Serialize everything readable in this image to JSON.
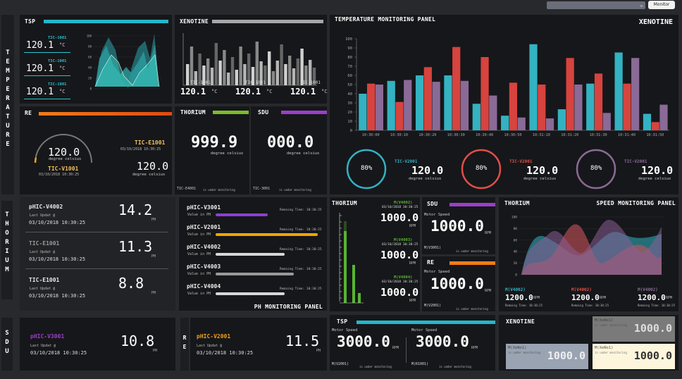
{
  "topbar": {
    "dropdown": "",
    "button": "Monitor"
  },
  "side": {
    "temperature": "T\nE\nM\nP\nE\nR\nA\nT\nU\nR\nE",
    "thorium": "T\nH\nO\nR\nI\nU\nM",
    "sdu": "S\nD\nU",
    "re": "R\nE"
  },
  "tsp": {
    "title": "TSP",
    "items": [
      {
        "name": "TIC-1001",
        "value": "120.1",
        "unit": "°C"
      },
      {
        "name": "TIC-1001",
        "value": "120.1",
        "unit": "°C"
      },
      {
        "name": "TIC-1001",
        "value": "120.1",
        "unit": "°C"
      }
    ],
    "axis": [
      "100",
      "80",
      "60",
      "40",
      "20",
      "0"
    ]
  },
  "xen": {
    "title": "XENOTINE",
    "items": [
      {
        "name": "TIC-1001",
        "value": "120.1",
        "unit": "°C"
      },
      {
        "name": "TIC-1001",
        "value": "120.1",
        "unit": "°C"
      },
      {
        "name": "TIC-1001",
        "value": "120.1",
        "unit": "°C"
      }
    ]
  },
  "re": {
    "title": "RE",
    "gauge_value": "120.0",
    "gauge_unit": "degree celsius",
    "gauge_name": "TIC-V1001",
    "gauge_time": "03/10/2018 10:30:25",
    "side_name": "TIC-E1001",
    "side_time": "03/10/2018 10:30:25",
    "side_value": "120.0",
    "side_unit": "degree celsius"
  },
  "thor1": {
    "title": "THORIUM",
    "value": "999.9",
    "unit": "degree celsius",
    "name": "TIC-E4001",
    "status": "is under monitoring"
  },
  "sdu1": {
    "title": "SDU",
    "value": "000.0",
    "unit": "degree celsius",
    "name": "TIC-3001",
    "status": "is under monitoring"
  },
  "temp": {
    "title": "TEMPERATURE MONITORING PANEL",
    "sub": "XENOTINE",
    "circles": [
      {
        "pct": "80%",
        "name": "TIC-V2001",
        "value": "120.0",
        "unit": "degree celsius",
        "color": "#33b2c2"
      },
      {
        "pct": "80%",
        "name": "TIC-V2001",
        "value": "120.0",
        "unit": "degree celsius",
        "color": "#e04f4a"
      },
      {
        "pct": "80%",
        "name": "TIC-V2001",
        "value": "120.0",
        "unit": "degree celsius",
        "color": "#8c6a96"
      }
    ]
  },
  "chart_data": {
    "type": "bar",
    "categories": [
      "10:30:00",
      "10:30:10",
      "10:30:20",
      "10:30:30",
      "10:30:40",
      "10:30:50",
      "10:31:10",
      "10:31:20",
      "10:31:30",
      "10:31:40",
      "10:31:50"
    ],
    "ylim": [
      0,
      100
    ],
    "yticks": [
      "0",
      "10",
      "20",
      "30",
      "40",
      "50",
      "60",
      "70",
      "80",
      "90",
      "100"
    ],
    "series": [
      {
        "values": [
          40,
          54,
          60,
          60,
          29,
          16,
          94,
          23,
          51,
          85,
          18
        ]
      },
      {
        "values": [
          51,
          31,
          69,
          91,
          80,
          52,
          50,
          79,
          62,
          51,
          9
        ]
      },
      {
        "values": [
          50,
          55,
          53,
          54,
          38,
          14,
          13,
          50,
          19,
          79,
          28
        ]
      }
    ],
    "colors": [
      "#33b2c2",
      "#d7433e",
      "#8a6a96"
    ]
  },
  "ph": {
    "items": [
      {
        "name": "pHIC-V4002",
        "label": "Last Updat @",
        "time": "03/10/2018 10:30:25",
        "value": "14.2",
        "unit": "PH",
        "color": "#e8e8e8"
      },
      {
        "name": "TIC-E1001",
        "label": "Last Updat @",
        "time": "03/10/2018 10:30:25",
        "value": "11.3",
        "unit": "PH",
        "color": "#999"
      },
      {
        "name": "TIC-E1001",
        "label": "Last Updat @",
        "time": "03/10/2018 10:30:25",
        "value": "8.8",
        "unit": "PH",
        "color": "#e8e8e8"
      }
    ]
  },
  "phpanel": {
    "title": "PH MONITORING PANEL",
    "items": [
      {
        "name": "pHIC-V3001",
        "remain": "Remaing Time:  10:30:25",
        "label": "Value in PH",
        "color": "#8b3fd6",
        "frac": 0.5
      },
      {
        "name": "pHIC-V2001",
        "remain": "Remaing Time:  10:30:25",
        "label": "Value in PH",
        "color": "#f5a400",
        "frac": 0.98
      },
      {
        "name": "pHIC-V4002",
        "remain": "Remaing Time:  10:30:25",
        "label": "Value in PH",
        "color": "#d7d7d7",
        "frac": 0.66
      },
      {
        "name": "pHIC-V4003",
        "remain": "Remaing Time:  10:30:25",
        "label": "Value in PH",
        "color": "#999",
        "frac": 0.75
      },
      {
        "name": "pHIC-V4004",
        "remain": "Remaing Time:  10:30:25",
        "label": "Value in PH",
        "color": "#d7d7d7",
        "frac": 0.66
      }
    ]
  },
  "thor2": {
    "title": "THORIUM",
    "items": [
      {
        "name": "M(V4002)",
        "time": "03/10/2018 10:30:25",
        "value": "1000.0",
        "unit": "RPM"
      },
      {
        "name": "M(V4003)",
        "time": "03/10/2018 10:30:25",
        "value": "1000.0",
        "unit": "RPM"
      },
      {
        "name": "M(V4004)",
        "time": "03/10/2018 10:30:25",
        "value": "1000.0",
        "unit": "RPM"
      }
    ]
  },
  "sdu2": {
    "title": "SDU",
    "label": "Motor Speed",
    "value": "1000.0",
    "unit": "RPM",
    "name": "M(V3001)",
    "status": "is under monitoring"
  },
  "re2": {
    "title": "RE",
    "label": "Motor Speed",
    "value": "1000.0",
    "unit": "RPM",
    "name": "M(V2001)",
    "status": "is under monitoring"
  },
  "speed": {
    "title": "THORIUM",
    "sub": "SPEED MONITORING PANEL",
    "items": [
      {
        "name": "M(V4002)",
        "value": "1200.0",
        "unit": "RPM",
        "time": "Remaing Time:  10:30:25",
        "color": "#33b2c2"
      },
      {
        "name": "M(V4002)",
        "value": "1200.0",
        "unit": "RPM",
        "time": "Remaing Time:  10:30:25",
        "color": "#e04f4a"
      },
      {
        "name": "M(V4002)",
        "value": "1200.0",
        "unit": "RPM",
        "time": "Remaing Time:  10:30:25",
        "color": "#8c6a96"
      }
    ],
    "axis": [
      "100",
      "80",
      "60",
      "40",
      "20",
      "0"
    ]
  },
  "sdu3": {
    "name": "pHIC-V3001",
    "label": "Last Updat @",
    "time": "03/10/2018 10:30:25",
    "value": "10.8",
    "unit": "PH"
  },
  "re3": {
    "name": "pHIC-V2001",
    "label": "Last Updat @",
    "time": "03/10/2018 10:30:25",
    "value": "11.5",
    "unit": "PH"
  },
  "tsp2": {
    "title": "TSP",
    "left": {
      "label": "Motor Speed",
      "value": "3000.0",
      "unit": "RPM",
      "name": "M(V2001)",
      "status": "is under monitoring"
    },
    "right": {
      "label": "Motor Speed",
      "value": "3000.0",
      "unit": "RPM",
      "name": "M(R1001)",
      "status": "is under monitoring"
    }
  },
  "xen2": {
    "title": "XENOTINE",
    "tiles": [
      {
        "name": "M(XeNo1)",
        "status": "is under monitoring",
        "value": "1000.0"
      },
      {
        "name": "M(XeNo1)",
        "status": "is under monitoring",
        "value": "1000.0"
      },
      {
        "name": "M(XeNo1)",
        "status": "is under monitoring",
        "value": "1000.0"
      }
    ]
  }
}
